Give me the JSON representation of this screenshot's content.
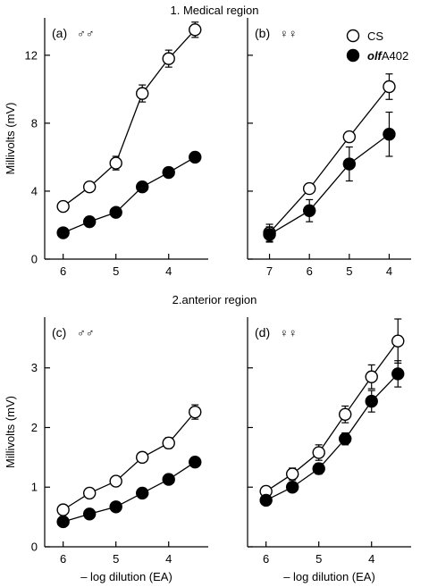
{
  "section_titles": [
    "1. Medical region",
    "2.anterior region"
  ],
  "legend": [
    {
      "label": "CS",
      "style": "open"
    },
    {
      "label_italic": "olf",
      "label_rest": "A402",
      "style": "filled"
    }
  ],
  "chart_data": [
    {
      "type": "line",
      "panel_label": "(a)",
      "sex_symbol": "♂♂",
      "ylabel": "Millivolts (mV)",
      "xlabel": "",
      "xlim": [
        6.35,
        3.25
      ],
      "ylim": [
        0,
        14.2
      ],
      "xticks": [
        6,
        5,
        4
      ],
      "yticks": [
        0,
        4,
        8,
        12
      ],
      "xtick_labels": [
        "6",
        "5",
        "4"
      ],
      "ytick_labels": [
        "0",
        "4",
        "8",
        "12"
      ],
      "series": [
        {
          "name": "CS",
          "marker": "open",
          "x": [
            6,
            5.5,
            5,
            4.5,
            4,
            3.5
          ],
          "y": [
            3.1,
            4.25,
            5.65,
            9.75,
            11.8,
            13.5
          ],
          "err": [
            0.1,
            0.1,
            0.4,
            0.5,
            0.5,
            0.45
          ]
        },
        {
          "name": "olfA402",
          "marker": "filled",
          "x": [
            6,
            5.5,
            5,
            4.5,
            4,
            3.5
          ],
          "y": [
            1.55,
            2.2,
            2.75,
            4.25,
            5.1,
            6.0
          ],
          "err": [
            0.1,
            0.1,
            0.1,
            0.1,
            0.1,
            0.1
          ]
        }
      ]
    },
    {
      "type": "line",
      "panel_label": "(b)",
      "sex_symbol": "♀♀",
      "ylabel": "",
      "xlabel": "",
      "xlim": [
        7.55,
        3.45
      ],
      "ylim": [
        0,
        14.2
      ],
      "xticks": [
        7,
        6,
        5,
        4
      ],
      "yticks": [
        0,
        4,
        8,
        12
      ],
      "xtick_labels": [
        "7",
        "6",
        "5",
        "4"
      ],
      "ytick_labels": [],
      "series": [
        {
          "name": "CS",
          "marker": "open",
          "x": [
            7,
            6,
            5,
            4
          ],
          "y": [
            1.55,
            4.15,
            7.2,
            10.15
          ],
          "err": [
            0.5,
            0.3,
            0.3,
            0.75
          ]
        },
        {
          "name": "olfA402",
          "marker": "filled",
          "x": [
            7,
            6,
            5,
            4
          ],
          "y": [
            1.45,
            2.85,
            5.6,
            7.35
          ],
          "err": [
            0.45,
            0.65,
            1.0,
            1.3
          ]
        }
      ]
    },
    {
      "type": "line",
      "panel_label": "(c)",
      "sex_symbol": "♂♂",
      "ylabel": "Millivolts (mV)",
      "xlabel": "– log dilution (EA)",
      "xlim": [
        6.35,
        3.25
      ],
      "ylim": [
        0,
        3.85
      ],
      "xticks": [
        6,
        5,
        4
      ],
      "yticks": [
        0,
        1,
        2,
        3
      ],
      "xtick_labels": [
        "6",
        "5",
        "4"
      ],
      "ytick_labels": [
        "0",
        "1",
        "2",
        "3"
      ],
      "series": [
        {
          "name": "CS",
          "marker": "open",
          "x": [
            6,
            5.5,
            5,
            4.5,
            4,
            3.5
          ],
          "y": [
            0.62,
            0.9,
            1.1,
            1.5,
            1.74,
            2.26
          ],
          "err": [
            0.03,
            0.03,
            0.04,
            0.04,
            0.09,
            0.12
          ]
        },
        {
          "name": "olfA402",
          "marker": "filled",
          "x": [
            6,
            5.5,
            5,
            4.5,
            4,
            3.5
          ],
          "y": [
            0.42,
            0.55,
            0.67,
            0.9,
            1.13,
            1.42
          ],
          "err": [
            0.02,
            0.02,
            0.02,
            0.03,
            0.03,
            0.03
          ]
        }
      ]
    },
    {
      "type": "line",
      "panel_label": "(d)",
      "sex_symbol": "♀♀",
      "ylabel": "",
      "xlabel": "– log dilution (EA)",
      "xlim": [
        6.35,
        3.25
      ],
      "ylim": [
        0,
        3.85
      ],
      "xticks": [
        6,
        5,
        4
      ],
      "yticks": [
        0,
        1,
        2,
        3
      ],
      "xtick_labels": [
        "6",
        "5",
        "4"
      ],
      "ytick_labels": [],
      "series": [
        {
          "name": "CS",
          "marker": "open",
          "x": [
            6,
            5.5,
            5,
            4.5,
            4,
            3.5
          ],
          "y": [
            0.93,
            1.22,
            1.58,
            2.22,
            2.85,
            3.45
          ],
          "err": [
            0.03,
            0.1,
            0.13,
            0.14,
            0.2,
            0.37
          ]
        },
        {
          "name": "olfA402",
          "marker": "filled",
          "x": [
            6,
            5.5,
            5,
            4.5,
            4,
            3.5
          ],
          "y": [
            0.78,
            1.0,
            1.31,
            1.81,
            2.44,
            2.9
          ],
          "err": [
            0.03,
            0.05,
            0.09,
            0.1,
            0.18,
            0.22
          ]
        }
      ]
    }
  ]
}
